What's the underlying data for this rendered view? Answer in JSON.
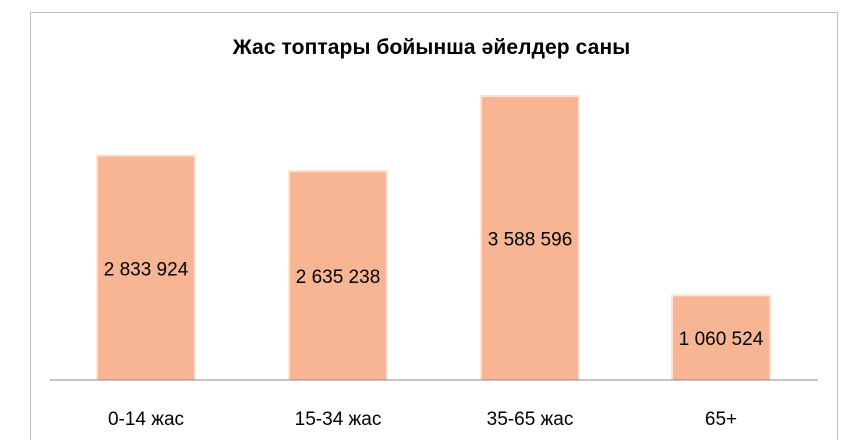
{
  "chart_data": {
    "type": "bar",
    "title": "Жас топтары бойынша әйелдер саны",
    "categories": [
      "0-14 жас",
      "15-34 жас",
      "35-65 жас",
      "65+"
    ],
    "values": [
      2833924,
      2635238,
      3588596,
      1060524
    ],
    "value_labels": [
      "2 833 924",
      "2 635 238",
      "3 588 596",
      "1 060 524"
    ],
    "xlabel": "",
    "ylabel": "",
    "ylim": [
      0,
      4000000
    ],
    "grid": false,
    "legend": "none",
    "bar_color": "#f7b593",
    "bar_edge_color": "#fde3d3",
    "axis_color": "#8c8c8c"
  }
}
